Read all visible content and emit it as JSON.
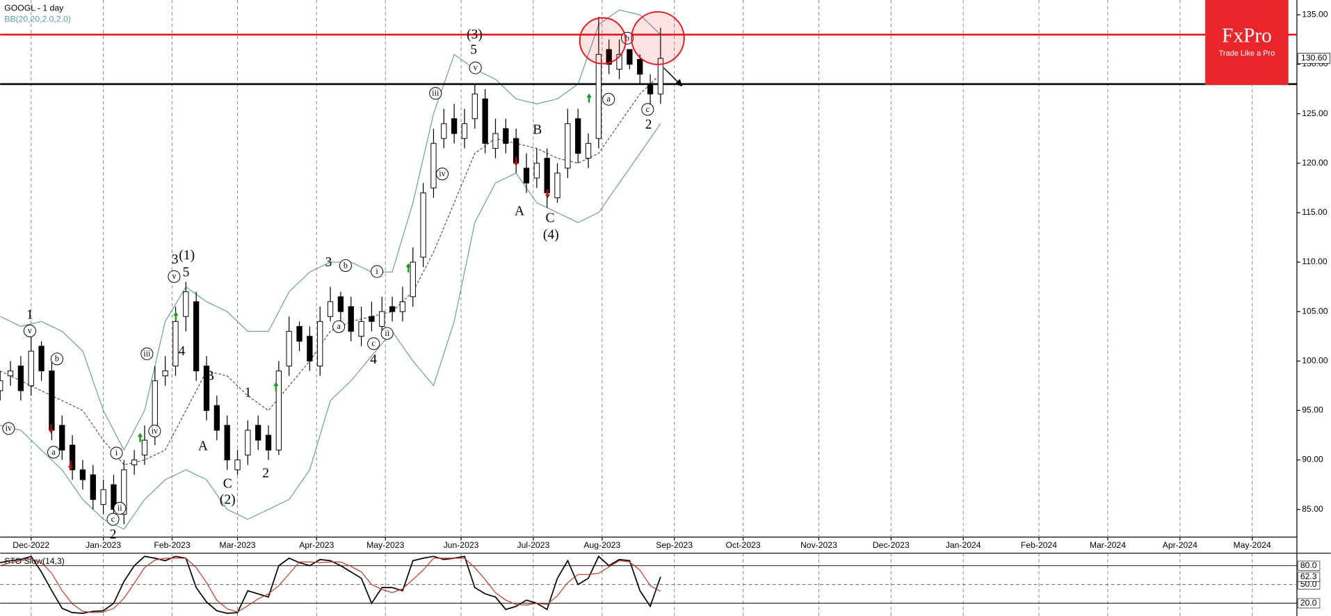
{
  "chart_data": [
    {
      "type": "candlestick",
      "title": "GOOGL - 1 day",
      "subtitle": "BB(20,20,2.0,2.0)",
      "x": [
        0,
        3,
        6,
        9,
        12,
        15,
        18,
        21,
        24,
        27,
        30,
        33,
        36,
        39,
        42,
        45,
        48,
        51,
        54,
        57,
        60,
        63,
        66,
        69,
        72,
        75,
        78,
        81,
        84,
        87,
        90,
        93,
        96,
        99,
        102,
        105,
        108,
        111,
        114,
        117,
        120,
        123,
        126,
        129,
        132,
        135,
        138,
        141,
        144,
        147,
        150,
        153,
        156,
        159,
        162,
        165,
        168,
        171,
        174,
        177,
        180,
        183,
        186,
        189,
        192
      ],
      "open": [
        97,
        98.5,
        99.5,
        97.5,
        101.5,
        99,
        93.5,
        91.5,
        89,
        88.5,
        85.5,
        87.5,
        84.5,
        89.5,
        90.5,
        92.5,
        98.5,
        99.5,
        104.5,
        106,
        99.5,
        95.5,
        93.5,
        89,
        90.5,
        93.5,
        92.5,
        91,
        99.5,
        103.5,
        102.5,
        99.5,
        104.5,
        106.5,
        105.5,
        102.5,
        104.5,
        103.5,
        105.5,
        105,
        106.5,
        110.5,
        117.5,
        122.5,
        124.5,
        122.5,
        124.5,
        126.5,
        121.5,
        123.5,
        122.5,
        119.5,
        118.5,
        120.5,
        116.5,
        119.5,
        124.5,
        120.5,
        122.5,
        131.5,
        129.5,
        131.5,
        130.5,
        128,
        127
      ],
      "high": [
        99,
        100,
        100.5,
        102.5,
        102,
        100,
        94.5,
        92.5,
        90,
        89.5,
        88,
        88.5,
        90,
        91,
        93.5,
        99.5,
        100.5,
        105.5,
        108,
        107,
        100.5,
        96.5,
        94.5,
        91,
        94,
        94.5,
        93.5,
        100,
        104.5,
        104,
        103.5,
        105.5,
        107.5,
        107,
        106.5,
        105.5,
        106,
        106.5,
        106.5,
        107.5,
        111.5,
        118,
        123.5,
        125.5,
        126,
        125.5,
        128,
        127.5,
        124.5,
        124.5,
        123.5,
        121,
        121.5,
        121.5,
        120,
        125.5,
        125.5,
        123,
        134.8,
        132.5,
        132.5,
        131.5,
        131,
        129,
        133.7
      ],
      "low": [
        96,
        97.5,
        96,
        96.5,
        98,
        92,
        90,
        88,
        87,
        85,
        84.5,
        84,
        83.5,
        88.5,
        89.5,
        91.5,
        97.5,
        98.5,
        103,
        98,
        94,
        92,
        89,
        88.5,
        89.5,
        91,
        90,
        90.5,
        98.5,
        101,
        99,
        98.5,
        104,
        104,
        102,
        101.5,
        103,
        102.5,
        104,
        104,
        105.5,
        109.5,
        116.5,
        121.5,
        122,
        121.5,
        123.5,
        121,
        120.5,
        121,
        119,
        117,
        117.5,
        115.5,
        116,
        118.5,
        120,
        119.5,
        121.5,
        129,
        128.5,
        129.5,
        128,
        126,
        126
      ],
      "close": [
        98,
        99,
        97,
        101,
        99,
        93,
        91,
        89,
        88,
        86,
        87,
        85,
        89,
        90,
        92,
        98,
        99,
        104,
        107,
        99,
        95,
        93,
        90,
        90,
        93,
        92,
        91,
        99,
        103,
        102,
        100,
        104,
        106,
        105,
        103,
        104,
        104,
        105,
        105,
        106,
        110,
        117,
        122,
        124,
        123,
        124,
        127,
        122,
        123,
        122,
        120,
        118,
        120,
        117,
        119,
        124,
        121,
        122,
        131,
        130,
        131,
        130,
        129,
        127,
        130.6
      ],
      "last_label": "130.60",
      "up_color": "#ffffff",
      "down_color": "#000000",
      "bands": {
        "x": [
          0,
          6,
          12,
          18,
          24,
          30,
          36,
          42,
          48,
          54,
          60,
          66,
          72,
          78,
          84,
          90,
          96,
          102,
          108,
          114,
          120,
          126,
          132,
          138,
          144,
          150,
          156,
          162,
          168,
          174,
          180,
          186,
          192
        ],
        "upper": [
          104.5,
          103.5,
          104,
          103,
          101,
          95,
          91,
          95,
          104,
          107.5,
          106,
          105,
          103,
          103,
          107,
          109,
          110,
          110,
          109,
          109,
          116,
          125,
          131,
          129.5,
          128.5,
          126.5,
          126,
          126.5,
          128,
          134,
          135.5,
          135,
          133
        ],
        "middle": [
          99,
          98,
          97,
          96,
          95,
          92,
          89.5,
          90,
          91,
          95,
          99,
          98.5,
          96.5,
          95,
          97.5,
          100,
          103,
          104,
          104.5,
          105,
          107,
          111,
          116,
          121,
          122.5,
          122,
          121.5,
          120.5,
          120,
          121,
          124,
          127,
          129
        ],
        "lower": [
          93.5,
          93,
          91,
          89,
          86,
          84,
          83,
          86,
          88,
          89,
          88,
          85,
          84,
          85,
          86,
          89,
          96,
          98,
          100.5,
          103,
          100,
          97.5,
          104,
          114,
          118,
          119,
          116,
          115,
          114,
          115,
          118,
          121,
          124
        ],
        "color": "#6e9fa3",
        "middle_color": "#555555"
      },
      "levels": [
        {
          "value": 133,
          "color": "#e8141b"
        },
        {
          "value": 128,
          "color": "#000000"
        }
      ],
      "xlim": [
        0,
        377
      ],
      "xticks": [
        {
          "value": 9,
          "label": "Dec-2022"
        },
        {
          "value": 30,
          "label": "Jan-2023"
        },
        {
          "value": 50,
          "label": "Feb-2023"
        },
        {
          "value": 69,
          "label": "Mar-2023"
        },
        {
          "value": 92,
          "label": "Apr-2023"
        },
        {
          "value": 112,
          "label": "May-2023"
        },
        {
          "value": 134,
          "label": "Jun-2023"
        },
        {
          "value": 155,
          "label": "Jul-2023"
        },
        {
          "value": 175,
          "label": "Aug-2023"
        },
        {
          "value": 196,
          "label": "Sep-2023"
        },
        {
          "value": 216,
          "label": "Oct-2023"
        },
        {
          "value": 238,
          "label": "Nov-2023"
        },
        {
          "value": 259,
          "label": "Dec-2023"
        },
        {
          "value": 280,
          "label": "Jan-2024"
        },
        {
          "value": 302,
          "label": "Feb-2024"
        },
        {
          "value": 322,
          "label": "Mar-2024"
        },
        {
          "value": 343,
          "label": "Apr-2024"
        },
        {
          "value": 364,
          "label": "May-2024"
        }
      ],
      "ylim": [
        82.2,
        136.5
      ],
      "yticks": [
        {
          "value": 85,
          "label": "85.00"
        },
        {
          "value": 90,
          "label": "90.00"
        },
        {
          "value": 95,
          "label": "95.00"
        },
        {
          "value": 100,
          "label": "100.00"
        },
        {
          "value": 105,
          "label": "105.00"
        },
        {
          "value": 110,
          "label": "110.00"
        },
        {
          "value": 115,
          "label": "115.00"
        },
        {
          "value": 120,
          "label": "120.00"
        },
        {
          "value": 125,
          "label": "125.00"
        },
        {
          "value": 130,
          "label": "130.00"
        },
        {
          "value": 135,
          "label": "135.00"
        }
      ],
      "grid": "x",
      "annotations": [
        "1",
        "v",
        "b",
        "iv",
        "a",
        "c",
        "2",
        "ii",
        "i",
        "iii",
        "iv",
        "v",
        "3",
        "(1)",
        "5",
        "4",
        "B",
        "A",
        "C",
        "(2)",
        "1",
        "2",
        "3",
        "b",
        "a",
        "i",
        "c",
        "ii",
        "4",
        "iii",
        "iv",
        "(3)",
        "5",
        "v",
        "B",
        "A",
        "C",
        "(4)",
        "a",
        "b",
        "c",
        "2"
      ],
      "logo": {
        "name": "FxPro",
        "tagline": "Trade Like a Pro",
        "color": "#e8262b"
      }
    },
    {
      "type": "line",
      "title": "STO Slow(14,3)",
      "x": [
        0,
        3,
        6,
        9,
        12,
        15,
        18,
        21,
        24,
        27,
        30,
        33,
        36,
        39,
        42,
        45,
        48,
        51,
        54,
        57,
        60,
        63,
        66,
        69,
        72,
        75,
        78,
        81,
        84,
        87,
        90,
        93,
        96,
        99,
        102,
        105,
        108,
        111,
        114,
        117,
        120,
        123,
        126,
        129,
        132,
        135,
        138,
        141,
        144,
        147,
        150,
        153,
        156,
        159,
        162,
        165,
        168,
        171,
        174,
        177,
        180,
        183,
        186,
        189,
        192
      ],
      "series": [
        {
          "color": "#000000",
          "values": [
            85,
            88,
            90,
            95,
            70,
            40,
            12,
            5,
            4,
            7,
            8,
            20,
            55,
            80,
            95,
            92,
            88,
            95,
            92,
            45,
            22,
            8,
            4,
            5,
            40,
            35,
            30,
            80,
            92,
            85,
            80,
            90,
            88,
            80,
            70,
            60,
            20,
            45,
            45,
            40,
            88,
            92,
            95,
            90,
            92,
            95,
            45,
            35,
            30,
            10,
            15,
            25,
            20,
            10,
            60,
            88,
            50,
            60,
            95,
            80,
            90,
            88,
            40,
            15,
            62.3
          ]
        },
        {
          "color": "#c0392b",
          "values": [
            80,
            85,
            88,
            91,
            85,
            68,
            40,
            19,
            7,
            5,
            6,
            12,
            28,
            52,
            77,
            89,
            92,
            92,
            92,
            77,
            53,
            25,
            11,
            6,
            16,
            27,
            35,
            48,
            67,
            86,
            86,
            85,
            86,
            86,
            79,
            70,
            50,
            42,
            37,
            43,
            58,
            73,
            92,
            92,
            92,
            92,
            77,
            58,
            37,
            25,
            18,
            17,
            20,
            18,
            32,
            53,
            66,
            66,
            68,
            78,
            88,
            86,
            73,
            48,
            39
          ]
        }
      ],
      "xlim": [
        0,
        377
      ],
      "ylim": [
        0,
        100
      ],
      "yticks": [
        {
          "value": 80,
          "label": "80.0"
        },
        {
          "value": 50,
          "label": "50.0"
        },
        {
          "value": 20,
          "label": "20.0"
        }
      ]
    }
  ]
}
